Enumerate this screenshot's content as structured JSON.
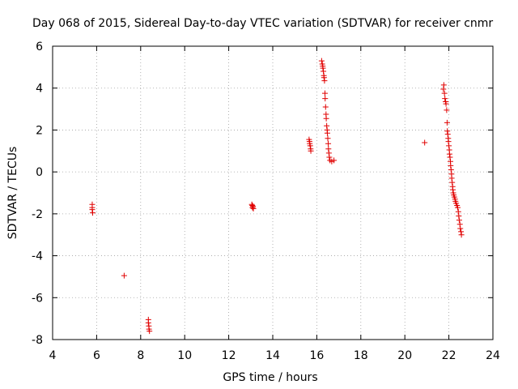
{
  "chart_data": {
    "type": "scatter",
    "title": "Day 068 of 2015, Sidereal Day-to-day VTEC variation (SDTVAR) for receiver cnmr",
    "xlabel": "GPS time / hours",
    "ylabel": "SDTVAR / TECUs",
    "xlim": [
      4,
      24
    ],
    "ylim": [
      -8,
      6
    ],
    "xticks": [
      4,
      6,
      8,
      10,
      12,
      14,
      16,
      18,
      20,
      22,
      24
    ],
    "yticks": [
      -8,
      -6,
      -4,
      -2,
      0,
      2,
      4,
      6
    ],
    "grid": true,
    "marker": "+",
    "color": "#e00000",
    "series": [
      {
        "name": "SDTVAR",
        "points": [
          [
            5.8,
            -1.55
          ],
          [
            5.8,
            -1.7
          ],
          [
            5.8,
            -1.8
          ],
          [
            5.82,
            -1.95
          ],
          [
            7.25,
            -4.95
          ],
          [
            8.35,
            -7.05
          ],
          [
            8.35,
            -7.2
          ],
          [
            8.37,
            -7.35
          ],
          [
            8.38,
            -7.5
          ],
          [
            8.4,
            -7.6
          ],
          [
            13.05,
            -1.55
          ],
          [
            13.07,
            -1.6
          ],
          [
            13.08,
            -1.7
          ],
          [
            13.1,
            -1.65
          ],
          [
            13.12,
            -1.75
          ],
          [
            15.65,
            1.55
          ],
          [
            15.67,
            1.45
          ],
          [
            15.68,
            1.35
          ],
          [
            15.7,
            1.25
          ],
          [
            15.72,
            1.1
          ],
          [
            15.73,
            1.0
          ],
          [
            16.22,
            5.3
          ],
          [
            16.25,
            5.15
          ],
          [
            16.27,
            5.05
          ],
          [
            16.28,
            4.95
          ],
          [
            16.3,
            4.8
          ],
          [
            16.32,
            4.6
          ],
          [
            16.33,
            4.5
          ],
          [
            16.35,
            4.35
          ],
          [
            16.37,
            3.75
          ],
          [
            16.38,
            3.5
          ],
          [
            16.4,
            3.1
          ],
          [
            16.42,
            2.75
          ],
          [
            16.43,
            2.55
          ],
          [
            16.45,
            2.2
          ],
          [
            16.47,
            2.0
          ],
          [
            16.48,
            1.85
          ],
          [
            16.5,
            1.6
          ],
          [
            16.52,
            1.35
          ],
          [
            16.53,
            1.1
          ],
          [
            16.55,
            0.9
          ],
          [
            16.57,
            0.7
          ],
          [
            16.6,
            0.55
          ],
          [
            16.68,
            0.5
          ],
          [
            16.78,
            0.55
          ],
          [
            20.9,
            1.4
          ],
          [
            21.75,
            3.95
          ],
          [
            21.77,
            4.15
          ],
          [
            21.8,
            3.75
          ],
          [
            21.82,
            3.5
          ],
          [
            21.85,
            3.35
          ],
          [
            21.87,
            3.25
          ],
          [
            21.9,
            2.95
          ],
          [
            21.92,
            2.35
          ],
          [
            21.93,
            1.95
          ],
          [
            21.95,
            1.8
          ],
          [
            21.97,
            1.6
          ],
          [
            21.98,
            1.45
          ],
          [
            22.0,
            1.25
          ],
          [
            22.02,
            1.05
          ],
          [
            22.03,
            0.85
          ],
          [
            22.05,
            0.7
          ],
          [
            22.07,
            0.5
          ],
          [
            22.08,
            0.3
          ],
          [
            22.1,
            0.1
          ],
          [
            22.12,
            -0.1
          ],
          [
            22.13,
            -0.3
          ],
          [
            22.15,
            -0.5
          ],
          [
            22.17,
            -0.7
          ],
          [
            22.18,
            -0.85
          ],
          [
            22.2,
            -1.0
          ],
          [
            22.22,
            -1.1
          ],
          [
            22.25,
            -1.2
          ],
          [
            22.28,
            -1.3
          ],
          [
            22.3,
            -1.4
          ],
          [
            22.33,
            -1.5
          ],
          [
            22.37,
            -1.6
          ],
          [
            22.4,
            -1.7
          ],
          [
            22.43,
            -1.9
          ],
          [
            22.45,
            -2.1
          ],
          [
            22.47,
            -2.3
          ],
          [
            22.5,
            -2.5
          ],
          [
            22.52,
            -2.7
          ],
          [
            22.55,
            -2.85
          ],
          [
            22.57,
            -3.0
          ]
        ]
      }
    ]
  }
}
